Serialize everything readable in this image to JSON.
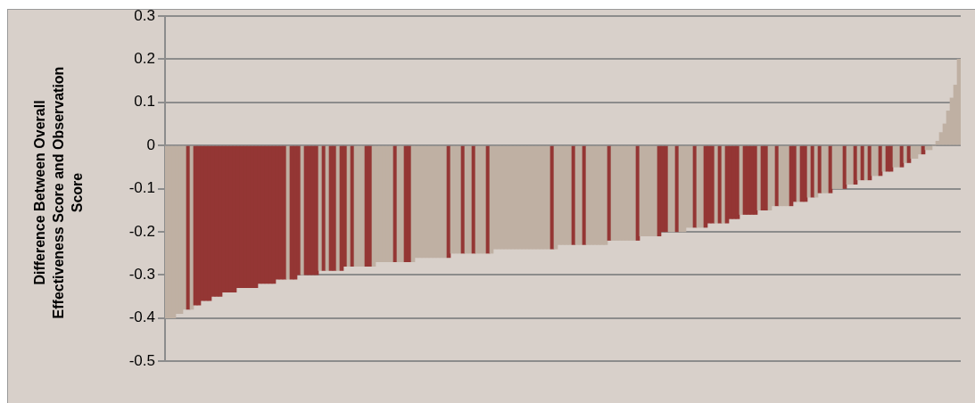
{
  "chart_data": {
    "type": "bar",
    "ylabel": "Difference Between Overall Effectiveness Score and Observation Score",
    "categories": [
      null,
      null,
      null,
      null,
      null,
      null,
      null,
      null,
      null,
      null,
      null,
      null,
      null,
      null,
      null,
      null,
      null,
      null,
      null,
      null,
      null,
      null,
      null,
      null,
      null,
      null,
      null,
      null,
      null,
      null,
      null,
      null,
      null,
      null,
      null,
      null,
      null,
      null,
      null,
      null,
      null,
      null,
      null,
      null,
      null,
      null,
      null,
      null,
      null,
      null,
      null,
      null,
      null,
      null,
      null,
      null,
      null,
      null,
      null,
      null,
      null,
      null,
      null,
      null,
      null,
      null,
      null,
      null,
      null,
      null,
      null,
      null,
      null,
      null,
      null,
      null,
      null,
      null,
      null,
      null,
      null,
      null,
      null,
      null,
      null,
      null,
      null,
      null,
      null,
      null,
      null,
      null,
      null,
      null,
      null,
      null,
      null,
      null,
      null,
      null,
      null,
      null,
      null,
      null,
      null,
      null,
      null,
      null,
      null,
      null,
      null,
      null,
      null,
      null,
      null,
      null,
      null,
      null,
      null,
      null,
      null,
      null,
      null,
      null,
      null,
      null,
      null,
      null,
      null,
      null,
      null,
      null,
      null,
      null,
      null,
      null,
      null,
      null,
      null,
      null,
      null,
      null,
      null,
      null,
      null,
      null,
      null,
      null,
      null,
      null,
      null,
      null,
      null,
      null,
      null,
      null,
      null,
      null,
      null,
      null,
      null,
      null,
      null,
      null,
      null,
      null,
      null,
      null,
      null,
      null,
      null,
      null,
      null,
      null,
      null,
      null,
      null,
      null,
      null,
      null,
      null,
      null,
      null,
      null,
      null,
      null,
      null,
      null,
      null,
      null,
      null,
      null,
      null,
      null,
      null,
      null,
      null,
      null,
      null,
      null,
      null,
      null,
      null,
      null,
      null,
      null,
      null,
      null,
      null,
      null,
      null,
      null,
      null,
      null,
      null,
      null,
      null,
      null,
      null,
      null,
      null,
      null,
      null
    ],
    "values": [
      -0.4,
      -0.4,
      -0.4,
      -0.39,
      -0.39,
      -0.38,
      -0.38,
      -0.38,
      -0.37,
      -0.37,
      -0.36,
      -0.36,
      -0.36,
      -0.35,
      -0.35,
      -0.35,
      -0.34,
      -0.34,
      -0.34,
      -0.34,
      -0.33,
      -0.33,
      -0.33,
      -0.33,
      -0.33,
      -0.33,
      -0.32,
      -0.32,
      -0.32,
      -0.32,
      -0.32,
      -0.31,
      -0.31,
      -0.31,
      -0.31,
      -0.31,
      -0.31,
      -0.3,
      -0.3,
      -0.3,
      -0.3,
      -0.3,
      -0.3,
      -0.29,
      -0.29,
      -0.29,
      -0.29,
      -0.29,
      -0.29,
      -0.29,
      -0.28,
      -0.28,
      -0.28,
      -0.28,
      -0.28,
      -0.28,
      -0.28,
      -0.28,
      -0.28,
      -0.27,
      -0.27,
      -0.27,
      -0.27,
      -0.27,
      -0.27,
      -0.27,
      -0.27,
      -0.27,
      -0.27,
      -0.27,
      -0.26,
      -0.26,
      -0.26,
      -0.26,
      -0.26,
      -0.26,
      -0.26,
      -0.26,
      -0.26,
      -0.26,
      -0.25,
      -0.25,
      -0.25,
      -0.25,
      -0.25,
      -0.25,
      -0.25,
      -0.25,
      -0.25,
      -0.25,
      -0.25,
      -0.25,
      -0.24,
      -0.24,
      -0.24,
      -0.24,
      -0.24,
      -0.24,
      -0.24,
      -0.24,
      -0.24,
      -0.24,
      -0.24,
      -0.24,
      -0.24,
      -0.24,
      -0.24,
      -0.24,
      -0.24,
      -0.24,
      -0.23,
      -0.23,
      -0.23,
      -0.23,
      -0.23,
      -0.23,
      -0.23,
      -0.23,
      -0.23,
      -0.23,
      -0.23,
      -0.23,
      -0.23,
      -0.23,
      -0.22,
      -0.22,
      -0.22,
      -0.22,
      -0.22,
      -0.22,
      -0.22,
      -0.22,
      -0.22,
      -0.21,
      -0.21,
      -0.21,
      -0.21,
      -0.21,
      -0.21,
      -0.2,
      -0.2,
      -0.2,
      -0.2,
      -0.2,
      -0.2,
      -0.2,
      -0.19,
      -0.19,
      -0.19,
      -0.19,
      -0.19,
      -0.19,
      -0.18,
      -0.18,
      -0.18,
      -0.18,
      -0.18,
      -0.18,
      -0.17,
      -0.17,
      -0.17,
      -0.16,
      -0.16,
      -0.16,
      -0.16,
      -0.16,
      -0.15,
      -0.15,
      -0.15,
      -0.15,
      -0.14,
      -0.14,
      -0.14,
      -0.14,
      -0.14,
      -0.14,
      -0.13,
      -0.13,
      -0.13,
      -0.13,
      -0.12,
      -0.12,
      -0.12,
      -0.11,
      -0.11,
      -0.11,
      -0.11,
      -0.1,
      -0.1,
      -0.1,
      -0.1,
      -0.09,
      -0.09,
      -0.09,
      -0.08,
      -0.08,
      -0.08,
      -0.08,
      -0.07,
      -0.07,
      -0.07,
      -0.06,
      -0.06,
      -0.06,
      -0.05,
      -0.05,
      -0.05,
      -0.04,
      -0.04,
      -0.03,
      -0.03,
      -0.02,
      -0.02,
      -0.01,
      -0.01,
      0,
      0.01,
      0.03,
      0.05,
      0.08,
      0.11,
      0.14,
      0.2
    ],
    "colors": [
      "#bfb0a3",
      "#bfb0a3",
      "#bfb0a3",
      "#bfb0a3",
      "#bfb0a3",
      "#bfb0a3",
      "#943634",
      "#bfb0a3",
      "#943634",
      "#943634",
      "#943634",
      "#943634",
      "#943634",
      "#943634",
      "#943634",
      "#943634",
      "#943634",
      "#943634",
      "#943634",
      "#943634",
      "#943634",
      "#943634",
      "#943634",
      "#943634",
      "#943634",
      "#943634",
      "#943634",
      "#943634",
      "#943634",
      "#943634",
      "#943634",
      "#943634",
      "#943634",
      "#943634",
      "#bfb0a3",
      "#943634",
      "#943634",
      "#943634",
      "#bfb0a3",
      "#943634",
      "#943634",
      "#943634",
      "#943634",
      "#bfb0a3",
      "#943634",
      "#bfb0a3",
      "#943634",
      "#943634",
      "#bfb0a3",
      "#943634",
      "#943634",
      "#bfb0a3",
      "#943634",
      "#bfb0a3",
      "#bfb0a3",
      "#bfb0a3",
      "#943634",
      "#943634",
      "#bfb0a3",
      "#bfb0a3",
      "#bfb0a3",
      "#bfb0a3",
      "#bfb0a3",
      "#bfb0a3",
      "#943634",
      "#bfb0a3",
      "#bfb0a3",
      "#943634",
      "#943634",
      "#bfb0a3",
      "#bfb0a3",
      "#bfb0a3",
      "#bfb0a3",
      "#bfb0a3",
      "#bfb0a3",
      "#bfb0a3",
      "#bfb0a3",
      "#bfb0a3",
      "#bfb0a3",
      "#943634",
      "#bfb0a3",
      "#bfb0a3",
      "#bfb0a3",
      "#943634",
      "#bfb0a3",
      "#bfb0a3",
      "#943634",
      "#bfb0a3",
      "#bfb0a3",
      "#bfb0a3",
      "#943634",
      "#bfb0a3",
      "#bfb0a3",
      "#bfb0a3",
      "#bfb0a3",
      "#bfb0a3",
      "#bfb0a3",
      "#bfb0a3",
      "#bfb0a3",
      "#bfb0a3",
      "#bfb0a3",
      "#bfb0a3",
      "#bfb0a3",
      "#bfb0a3",
      "#bfb0a3",
      "#bfb0a3",
      "#bfb0a3",
      "#bfb0a3",
      "#943634",
      "#bfb0a3",
      "#bfb0a3",
      "#bfb0a3",
      "#bfb0a3",
      "#bfb0a3",
      "#943634",
      "#bfb0a3",
      "#bfb0a3",
      "#943634",
      "#bfb0a3",
      "#bfb0a3",
      "#bfb0a3",
      "#bfb0a3",
      "#bfb0a3",
      "#bfb0a3",
      "#943634",
      "#bfb0a3",
      "#bfb0a3",
      "#bfb0a3",
      "#bfb0a3",
      "#bfb0a3",
      "#bfb0a3",
      "#bfb0a3",
      "#943634",
      "#bfb0a3",
      "#bfb0a3",
      "#bfb0a3",
      "#bfb0a3",
      "#bfb0a3",
      "#943634",
      "#943634",
      "#943634",
      "#bfb0a3",
      "#bfb0a3",
      "#943634",
      "#bfb0a3",
      "#bfb0a3",
      "#bfb0a3",
      "#bfb0a3",
      "#943634",
      "#bfb0a3",
      "#bfb0a3",
      "#943634",
      "#943634",
      "#943634",
      "#bfb0a3",
      "#943634",
      "#bfb0a3",
      "#943634",
      "#943634",
      "#943634",
      "#943634",
      "#bfb0a3",
      "#943634",
      "#943634",
      "#943634",
      "#943634",
      "#bfb0a3",
      "#943634",
      "#943634",
      "#bfb0a3",
      "#bfb0a3",
      "#943634",
      "#bfb0a3",
      "#bfb0a3",
      "#bfb0a3",
      "#943634",
      "#943634",
      "#bfb0a3",
      "#943634",
      "#943634",
      "#bfb0a3",
      "#943634",
      "#bfb0a3",
      "#943634",
      "#bfb0a3",
      "#bfb0a3",
      "#943634",
      "#bfb0a3",
      "#bfb0a3",
      "#bfb0a3",
      "#943634",
      "#bfb0a3",
      "#bfb0a3",
      "#943634",
      "#bfb0a3",
      "#943634",
      "#bfb0a3",
      "#943634",
      "#bfb0a3",
      "#bfb0a3",
      "#943634",
      "#bfb0a3",
      "#943634",
      "#943634",
      "#bfb0a3",
      "#bfb0a3",
      "#943634",
      "#bfb0a3",
      "#943634",
      "#bfb0a3",
      "#bfb0a3",
      "#bfb0a3",
      "#943634",
      "#bfb0a3",
      "#bfb0a3",
      "#bfb0a3",
      "#bfb0a3",
      "#bfb0a3",
      "#bfb0a3",
      "#bfb0a3",
      "#bfb0a3",
      "#bfb0a3",
      "#bfb0a3"
    ],
    "ylim": [
      -0.5,
      0.3
    ],
    "yticks": [
      -0.5,
      -0.4,
      -0.3,
      -0.2,
      -0.1,
      0,
      0.1,
      0.2,
      0.3
    ],
    "grid": "y",
    "tick_labels": "y"
  }
}
